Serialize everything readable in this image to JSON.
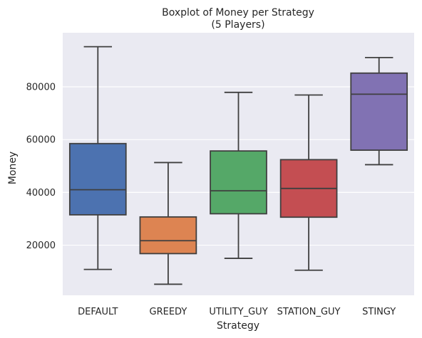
{
  "chart_data": {
    "type": "box",
    "title": "Boxplot of Money per Strategy",
    "subtitle": "(5 Players)",
    "xlabel": "Strategy",
    "ylabel": "Money",
    "ylim": [
      1000,
      100500
    ],
    "yticks": [
      20000,
      40000,
      60000,
      80000
    ],
    "ytick_labels": [
      "20000",
      "40000",
      "60000",
      "80000"
    ],
    "grid": true,
    "categories": [
      "DEFAULT",
      "GREEDY",
      "UTILITY_GUY",
      "STATION_GUY",
      "STINGY"
    ],
    "colors": [
      "#4c72b0",
      "#dd8452",
      "#55a868",
      "#c44e52",
      "#8172b3"
    ],
    "box_stats": [
      {
        "min": 10800,
        "q1": 31500,
        "median": 41000,
        "q3": 58500,
        "max": 95200
      },
      {
        "min": 5200,
        "q1": 16800,
        "median": 21700,
        "q3": 30700,
        "max": 51300
      },
      {
        "min": 15000,
        "q1": 31900,
        "median": 40600,
        "q3": 55700,
        "max": 77900
      },
      {
        "min": 10500,
        "q1": 30600,
        "median": 41500,
        "q3": 52400,
        "max": 76900
      },
      {
        "min": 50500,
        "q1": 56000,
        "median": 77200,
        "q3": 85200,
        "max": 91100
      }
    ],
    "style": {
      "background": "#eaeaf2",
      "grid_color": "#ffffff",
      "line_color": "#3f3f3f"
    }
  }
}
